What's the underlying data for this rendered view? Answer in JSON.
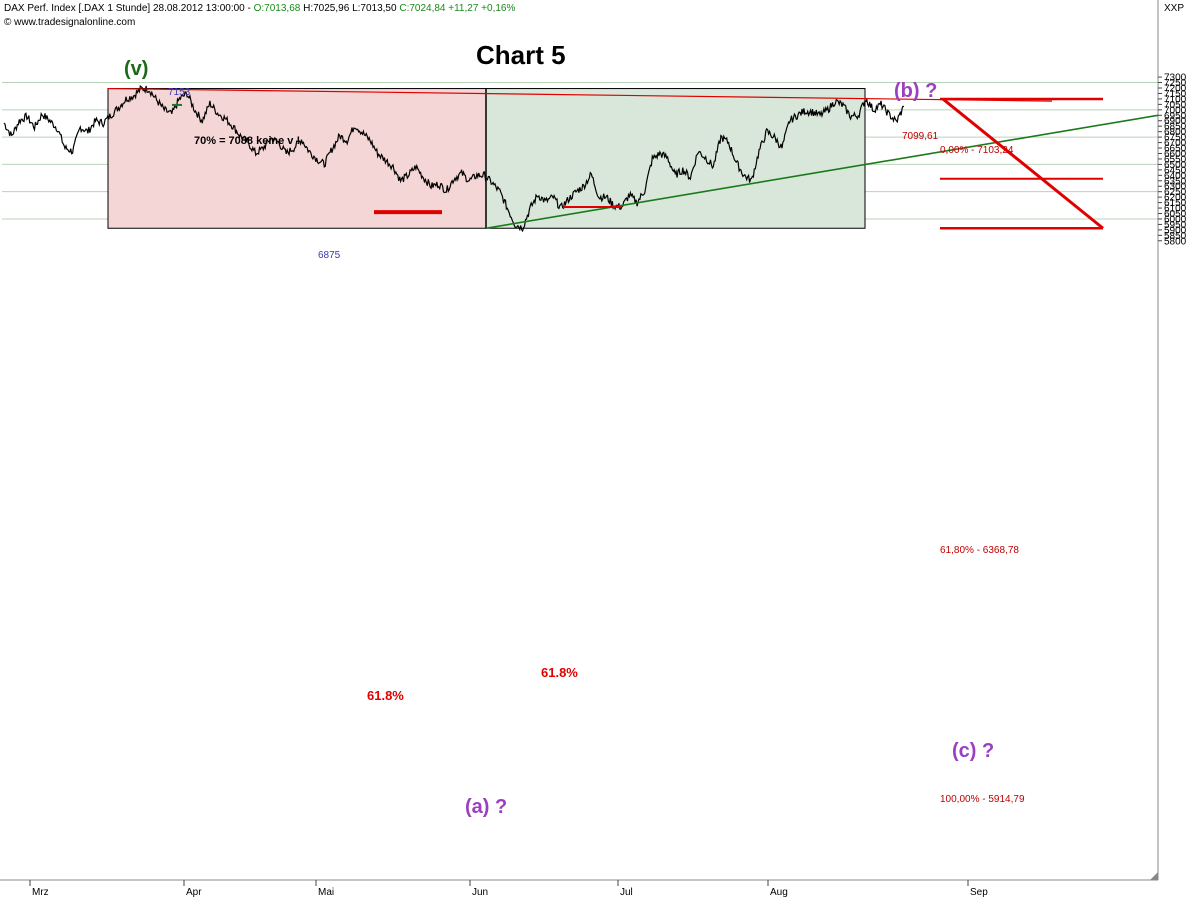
{
  "header": {
    "instrument": "DAX Perf. Index [.DAX  1 Stunde]",
    "datetime": "28.08.2012 13:00:00",
    "open": "O:7013,68",
    "high": "H:7025,96",
    "low": "L:7013,50",
    "close_change": "C:7024,84 +11,27 +0,16%",
    "copyright": "© www.tradesignalonline.com",
    "symbol_tag": "XXP"
  },
  "chart_data": {
    "type": "line",
    "title": "Chart 5",
    "xlabel": "",
    "ylabel": "",
    "ylim": [
      5750,
      7325
    ],
    "grid": true,
    "y_ticks": [
      7300,
      7250,
      7200,
      7150,
      7100,
      7050,
      7000,
      6950,
      6900,
      6850,
      6800,
      6750,
      6700,
      6650,
      6600,
      6550,
      6500,
      6450,
      6400,
      6350,
      6300,
      6250,
      6200,
      6150,
      6100,
      6050,
      6000,
      5950,
      5900,
      5850,
      5800
    ],
    "x_month_labels": [
      "Mrz",
      "Apr",
      "Mai",
      "Jun",
      "Jul",
      "Aug",
      "Sep"
    ],
    "series": [
      {
        "values": [
          6880,
          6760,
          6900,
          6940,
          6840,
          6960,
          6900,
          6830,
          6650,
          6620,
          6840,
          6800,
          6900,
          6880,
          6950,
          7020,
          7100,
          7130,
          7195,
          7190,
          7090,
          7000,
          6960,
          7100,
          7150,
          7000,
          6900,
          7060,
          6970,
          6920,
          6850,
          6760,
          6700,
          6600,
          6650,
          6740,
          6700,
          6600,
          6650,
          6730,
          6620,
          6550,
          6500,
          6640,
          6760,
          6720,
          6860,
          6790,
          6720,
          6600,
          6540,
          6480,
          6350,
          6400,
          6480,
          6380,
          6300,
          6320,
          6260,
          6370,
          6420,
          6350,
          6400,
          6400,
          6330,
          6250,
          6100,
          5950,
          5920,
          6100,
          6220,
          6160,
          6200,
          6100,
          6180,
          6250,
          6300,
          6410,
          6200,
          6200,
          6120,
          6110,
          6220,
          6150,
          6260,
          6550,
          6600,
          6560,
          6400,
          6450,
          6380,
          6620,
          6560,
          6480,
          6750,
          6700,
          6520,
          6400,
          6350,
          6620,
          6800,
          6750,
          6650,
          6900,
          6950,
          6990,
          6980,
          6950,
          7000,
          7080,
          7040,
          6940,
          6950,
          7100,
          7000,
          7050,
          6960,
          6890,
          7030
        ]
      }
    ]
  },
  "annotations": {
    "wave_v": "(v)",
    "wave_b": "(b) ?",
    "wave_a": "(a) ?",
    "wave_c": "(c) ?",
    "high_label": "7153",
    "low_label": "6875",
    "note_70": "70% = 7088 keine v !",
    "fib_left": "61.8%",
    "fib_mid": "61.8%",
    "trend_value": "7099,61",
    "fib_0": "0,00% - 7103,24",
    "fib_618": "61,80% - 6368,78",
    "fib_100": "100,00% - 5914,79"
  },
  "colors": {
    "price": "#000000",
    "red_zone": "#f5d6d6",
    "green_zone": "#d9e6da",
    "red_line": "#e00000",
    "green_line": "#1a7a1a",
    "wave_purple": "#9b3fc0",
    "wave_green": "#1a6a1a"
  }
}
